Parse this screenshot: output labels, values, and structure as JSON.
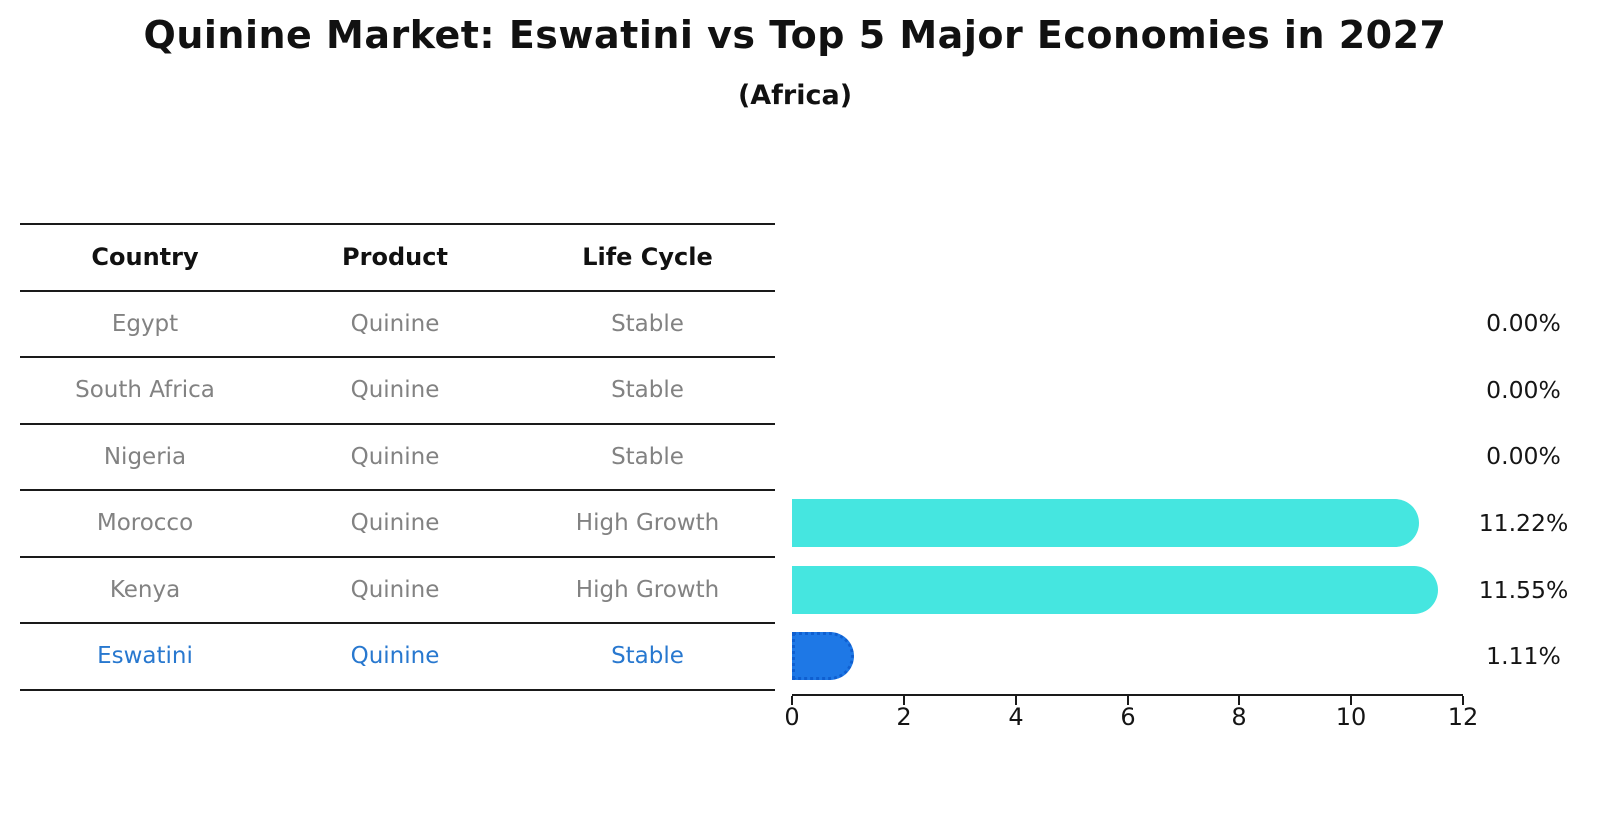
{
  "title": "Quinine Market: Eswatini vs Top 5 Major Economies in 2027",
  "subtitle": "(Africa)",
  "table": {
    "headers": [
      "Country",
      "Product",
      "Life Cycle"
    ],
    "rows": [
      {
        "country": "Egypt",
        "product": "Quinine",
        "life_cycle": "Stable"
      },
      {
        "country": "South Africa",
        "product": "Quinine",
        "life_cycle": "Stable"
      },
      {
        "country": "Nigeria",
        "product": "Quinine",
        "life_cycle": "Stable"
      },
      {
        "country": "Morocco",
        "product": "Quinine",
        "life_cycle": "High Growth"
      },
      {
        "country": "Kenya",
        "product": "Quinine",
        "life_cycle": "High Growth"
      },
      {
        "country": "Eswatini",
        "product": "Quinine",
        "life_cycle": "Stable"
      }
    ],
    "highlighted_row": "Eswatini"
  },
  "chart_data": {
    "type": "bar",
    "orientation": "horizontal",
    "title": "Quinine Market: Eswatini vs Top 5 Major Economies in 2027",
    "subtitle": "(Africa)",
    "categories": [
      "Egypt",
      "South Africa",
      "Nigeria",
      "Morocco",
      "Kenya",
      "Eswatini"
    ],
    "values": [
      0.0,
      0.0,
      0.0,
      11.22,
      11.55,
      1.11
    ],
    "value_labels": [
      "0.00%",
      "0.00%",
      "0.00%",
      "11.22%",
      "11.55%",
      "1.11%"
    ],
    "xlim": [
      0,
      12
    ],
    "xticks": [
      "0",
      "2",
      "4",
      "6",
      "8",
      "10",
      "12"
    ],
    "grid": false,
    "legend": false,
    "colors": {
      "default_bar": "#45e6e0",
      "highlight_bar": "#1e78e6",
      "highlight_bar_edge": "#0f5fd0",
      "highlight_text": "#2878cf",
      "table_text": "#828282",
      "axis_text": "#151515"
    }
  }
}
